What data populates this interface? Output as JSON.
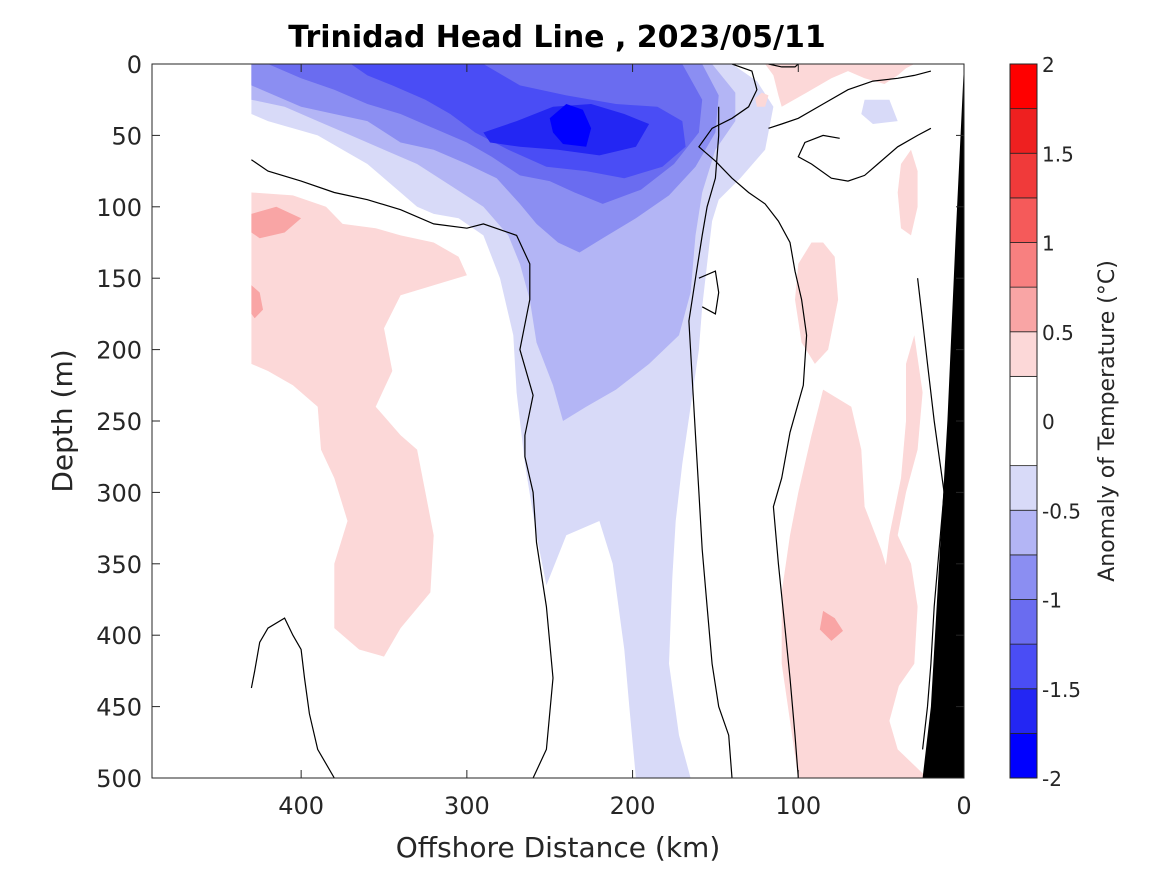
{
  "chart_data": {
    "type": "heatmap",
    "title": "Trinidad Head Line , 2023/05/11",
    "xlabel": "Offshore Distance (km)",
    "ylabel": "Depth (m)",
    "colorbar_label": "Anomaly of Temperature (°C)",
    "xlim": [
      490,
      0
    ],
    "ylim": [
      0,
      500
    ],
    "x_ticks": [
      400,
      300,
      200,
      100,
      0
    ],
    "y_ticks": [
      0,
      50,
      100,
      150,
      200,
      250,
      300,
      350,
      400,
      450,
      500
    ],
    "colorbar_ticks": [
      2,
      1.5,
      1,
      0.5,
      0,
      -0.5,
      -1,
      -1.5,
      -2
    ],
    "colorbar_levels": [
      -2,
      -1.75,
      -1.5,
      -1.25,
      -1,
      -0.75,
      -0.5,
      -0.25,
      0.25,
      0.5,
      0.75,
      1,
      1.25,
      1.5,
      1.75,
      2
    ],
    "colors": {
      "pos_1": "#fcd8d8",
      "pos_2": "#f9a5a5",
      "pos_3": "#f88080",
      "pos_4": "#f55a5a",
      "pos_5": "#f03a3a",
      "pos_6": "#ee2020",
      "pos_7": "#ff0000",
      "neg_1": "#d8daf8",
      "neg_2": "#b3b5f5",
      "neg_3": "#8b8ef2",
      "neg_4": "#6a6cf0",
      "neg_5": "#4a4df5",
      "neg_6": "#2326f3",
      "neg_7": "#0000ff",
      "zero": "#ffffff",
      "land": "#000000",
      "contour": "#000000"
    },
    "data_extent_km": [
      430,
      0
    ],
    "contour_level": 0,
    "grid": false,
    "colorbar_position": "right"
  }
}
